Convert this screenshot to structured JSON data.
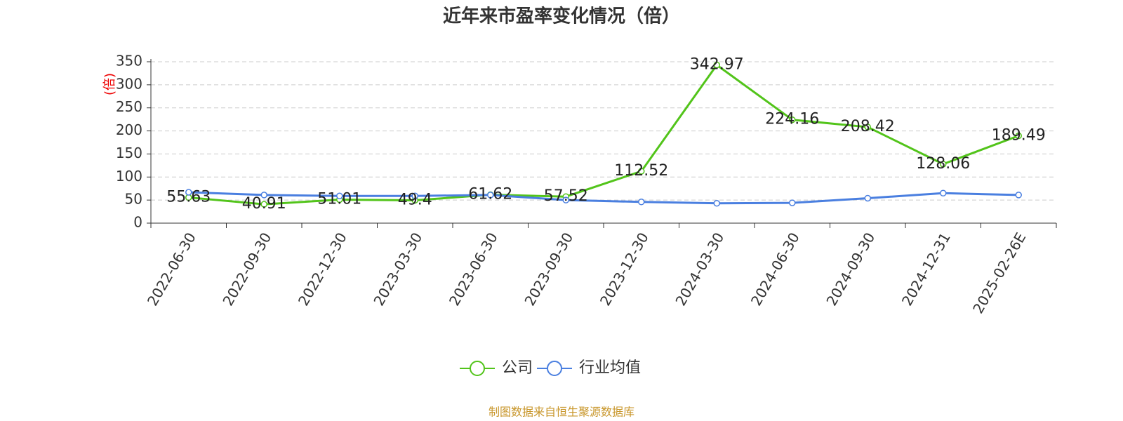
{
  "chart_data": {
    "type": "line",
    "title": "近年来市盈率变化情况（倍）",
    "y_label": "(倍)",
    "source": "制图数据来自恒生聚源数据库",
    "categories": [
      "2022-06-30",
      "2022-09-30",
      "2022-12-30",
      "2023-03-30",
      "2023-06-30",
      "2023-09-30",
      "2023-12-30",
      "2024-03-30",
      "2024-06-30",
      "2024-09-30",
      "2024-12-31",
      "2025-02-26E"
    ],
    "series": [
      {
        "name": "公司",
        "color": "#52c41a",
        "data_labels": true,
        "values": [
          55.63,
          40.91,
          51.01,
          49.4,
          61.62,
          57.52,
          112.52,
          342.97,
          224.16,
          208.42,
          128.06,
          189.49
        ]
      },
      {
        "name": "行业均值",
        "color": "#4a7fe0",
        "values": [
          67,
          61,
          59,
          59,
          61,
          50,
          46,
          43,
          44,
          54,
          65,
          61
        ]
      }
    ],
    "ylim": [
      0,
      350
    ],
    "yticks": [
      0,
      50,
      100,
      150,
      200,
      250,
      300,
      350
    ],
    "grid": true,
    "legend": "bottom"
  }
}
